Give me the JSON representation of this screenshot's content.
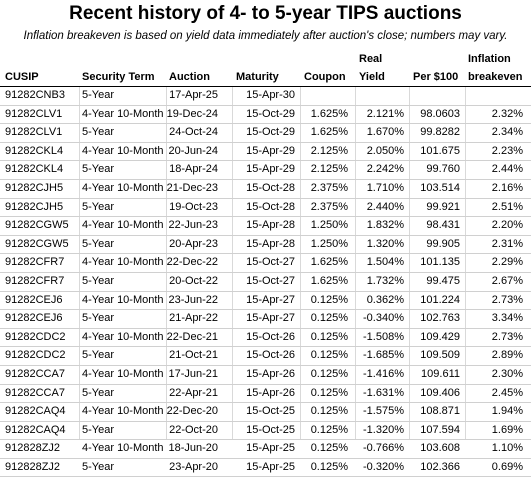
{
  "title": "Recent history of 4- to 5-year TIPS auctions",
  "subtitle": "Inflation breakeven is based on yield data immediately after auction's close; numbers may vary.",
  "headers": {
    "cusip": "CUSIP",
    "term": "Security Term",
    "auction": "Auction",
    "maturity": "Maturity",
    "coupon": "Coupon",
    "yield_top": "Real",
    "yield_bottom": "Yield",
    "price": "Per $100",
    "breakeven_top": "Inflation",
    "breakeven_bottom": "breakeven"
  },
  "rows": [
    {
      "cusip": "91282CNB3",
      "term": "5-Year",
      "auction": "17-Apr-25",
      "maturity": "15-Apr-30",
      "coupon": "",
      "yield": "",
      "price": "",
      "breakeven": ""
    },
    {
      "cusip": "91282CLV1",
      "term": "4-Year 10-Month",
      "auction": "19-Dec-24",
      "maturity": "15-Oct-29",
      "coupon": "1.625%",
      "yield": "2.121%",
      "price": "98.0603",
      "breakeven": "2.32%"
    },
    {
      "cusip": "91282CLV1",
      "term": "5-Year",
      "auction": "24-Oct-24",
      "maturity": "15-Oct-29",
      "coupon": "1.625%",
      "yield": "1.670%",
      "price": "99.8282",
      "breakeven": "2.34%"
    },
    {
      "cusip": "91282CKL4",
      "term": "4-Year 10-Month",
      "auction": "20-Jun-24",
      "maturity": "15-Apr-29",
      "coupon": "2.125%",
      "yield": "2.050%",
      "price": "101.675",
      "breakeven": "2.23%"
    },
    {
      "cusip": "91282CKL4",
      "term": "5-Year",
      "auction": "18-Apr-24",
      "maturity": "15-Apr-29",
      "coupon": "2.125%",
      "yield": "2.242%",
      "price": "99.760",
      "breakeven": "2.44%"
    },
    {
      "cusip": "91282CJH5",
      "term": "4-Year 10-Month",
      "auction": "21-Dec-23",
      "maturity": "15-Oct-28",
      "coupon": "2.375%",
      "yield": "1.710%",
      "price": "103.514",
      "breakeven": "2.16%"
    },
    {
      "cusip": "91282CJH5",
      "term": "5-Year",
      "auction": "19-Oct-23",
      "maturity": "15-Oct-28",
      "coupon": "2.375%",
      "yield": "2.440%",
      "price": "99.921",
      "breakeven": "2.51%"
    },
    {
      "cusip": "91282CGW5",
      "term": "4-Year 10-Month",
      "auction": "22-Jun-23",
      "maturity": "15-Apr-28",
      "coupon": "1.250%",
      "yield": "1.832%",
      "price": "98.431",
      "breakeven": "2.20%"
    },
    {
      "cusip": "91282CGW5",
      "term": "5-Year",
      "auction": "20-Apr-23",
      "maturity": "15-Apr-28",
      "coupon": "1.250%",
      "yield": "1.320%",
      "price": "99.905",
      "breakeven": "2.31%"
    },
    {
      "cusip": "91282CFR7",
      "term": "4-Year 10-Month",
      "auction": "22-Dec-22",
      "maturity": "15-Oct-27",
      "coupon": "1.625%",
      "yield": "1.504%",
      "price": "101.135",
      "breakeven": "2.29%"
    },
    {
      "cusip": "91282CFR7",
      "term": "5-Year",
      "auction": "20-Oct-22",
      "maturity": "15-Oct-27",
      "coupon": "1.625%",
      "yield": "1.732%",
      "price": "99.475",
      "breakeven": "2.67%"
    },
    {
      "cusip": "91282CEJ6",
      "term": "4-Year 10-Month",
      "auction": "23-Jun-22",
      "maturity": "15-Apr-27",
      "coupon": "0.125%",
      "yield": "0.362%",
      "price": "101.224",
      "breakeven": "2.73%"
    },
    {
      "cusip": "91282CEJ6",
      "term": "5-Year",
      "auction": "21-Apr-22",
      "maturity": "15-Apr-27",
      "coupon": "0.125%",
      "yield": "-0.340%",
      "price": "102.763",
      "breakeven": "3.34%"
    },
    {
      "cusip": "91282CDC2",
      "term": "4-Year 10-Month",
      "auction": "22-Dec-21",
      "maturity": "15-Oct-26",
      "coupon": "0.125%",
      "yield": "-1.508%",
      "price": "109.429",
      "breakeven": "2.73%"
    },
    {
      "cusip": "91282CDC2",
      "term": "5-Year",
      "auction": "21-Oct-21",
      "maturity": "15-Oct-26",
      "coupon": "0.125%",
      "yield": "-1.685%",
      "price": "109.509",
      "breakeven": "2.89%"
    },
    {
      "cusip": "91282CCA7",
      "term": "4-Year 10-Month",
      "auction": "17-Jun-21",
      "maturity": "15-Apr-26",
      "coupon": "0.125%",
      "yield": "-1.416%",
      "price": "109.611",
      "breakeven": "2.30%"
    },
    {
      "cusip": "91282CCA7",
      "term": "5-Year",
      "auction": "22-Apr-21",
      "maturity": "15-Apr-26",
      "coupon": "0.125%",
      "yield": "-1.631%",
      "price": "109.406",
      "breakeven": "2.45%"
    },
    {
      "cusip": "91282CAQ4",
      "term": "4-Year 10-Month",
      "auction": "22-Dec-20",
      "maturity": "15-Oct-25",
      "coupon": "0.125%",
      "yield": "-1.575%",
      "price": "108.871",
      "breakeven": "1.94%"
    },
    {
      "cusip": "91282CAQ4",
      "term": "5-Year",
      "auction": "22-Oct-20",
      "maturity": "15-Oct-25",
      "coupon": "0.125%",
      "yield": "-1.320%",
      "price": "107.594",
      "breakeven": "1.69%"
    },
    {
      "cusip": "912828ZJ2",
      "term": "4-Year 10-Month",
      "auction": "18-Jun-20",
      "maturity": "15-Apr-25",
      "coupon": "0.125%",
      "yield": "-0.766%",
      "price": "103.608",
      "breakeven": "1.10%"
    },
    {
      "cusip": "912828ZJ2",
      "term": "5-Year",
      "auction": "23-Apr-20",
      "maturity": "15-Apr-25",
      "coupon": "0.125%",
      "yield": "-0.320%",
      "price": "102.366",
      "breakeven": "0.69%"
    }
  ]
}
